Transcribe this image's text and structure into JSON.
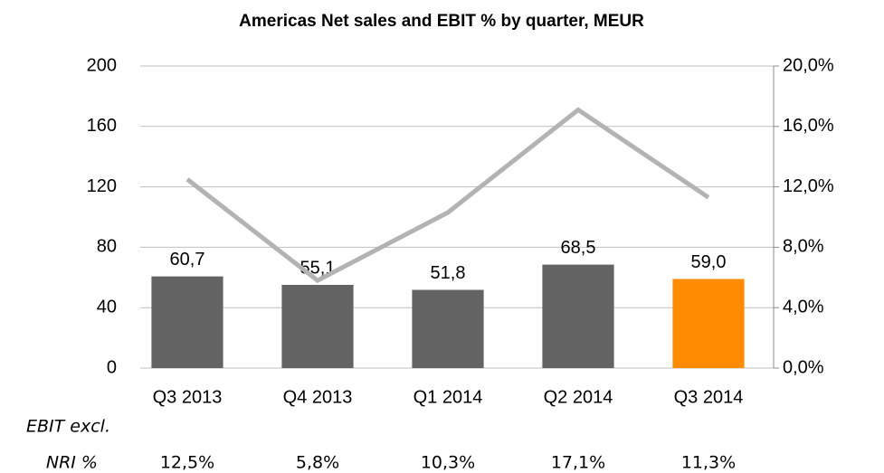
{
  "chart_data": {
    "type": "bar",
    "title": "Americas Net sales and EBIT % by quarter, MEUR",
    "categories": [
      "Q3 2013",
      "Q4 2013",
      "Q1 2014",
      "Q2 2014",
      "Q3 2014"
    ],
    "series": [
      {
        "name": "Net sales",
        "type": "bar",
        "colors": [
          "#636363",
          "#636363",
          "#636363",
          "#636363",
          "#ff8c00"
        ],
        "values": [
          60.7,
          55.1,
          51.8,
          68.5,
          59.0
        ],
        "value_labels": [
          "60,7",
          "55,1",
          "51,8",
          "68,5",
          "59,0"
        ]
      },
      {
        "name": "EBIT excl. NRI %",
        "type": "line",
        "axis": "y2",
        "color": "#b3b3b3",
        "values": [
          12.5,
          5.8,
          10.3,
          17.1,
          11.3
        ],
        "value_labels": [
          "12,5%",
          "5,8%",
          "10,3%",
          "17,1%",
          "11,3%"
        ]
      }
    ],
    "row_label": [
      "EBIT excl.",
      "NRI %"
    ],
    "ylim": [
      0,
      200
    ],
    "yticks": [
      0,
      40,
      80,
      120,
      160,
      200
    ],
    "y2lim": [
      0,
      20
    ],
    "y2ticks": [
      {
        "value": 0,
        "label": "0,0%"
      },
      {
        "value": 4,
        "label": "4,0%"
      },
      {
        "value": 8,
        "label": "8,0%"
      },
      {
        "value": 12,
        "label": "12,0%"
      },
      {
        "value": 16,
        "label": "16,0%"
      },
      {
        "value": 20,
        "label": "20,0%"
      }
    ],
    "grid": true
  }
}
